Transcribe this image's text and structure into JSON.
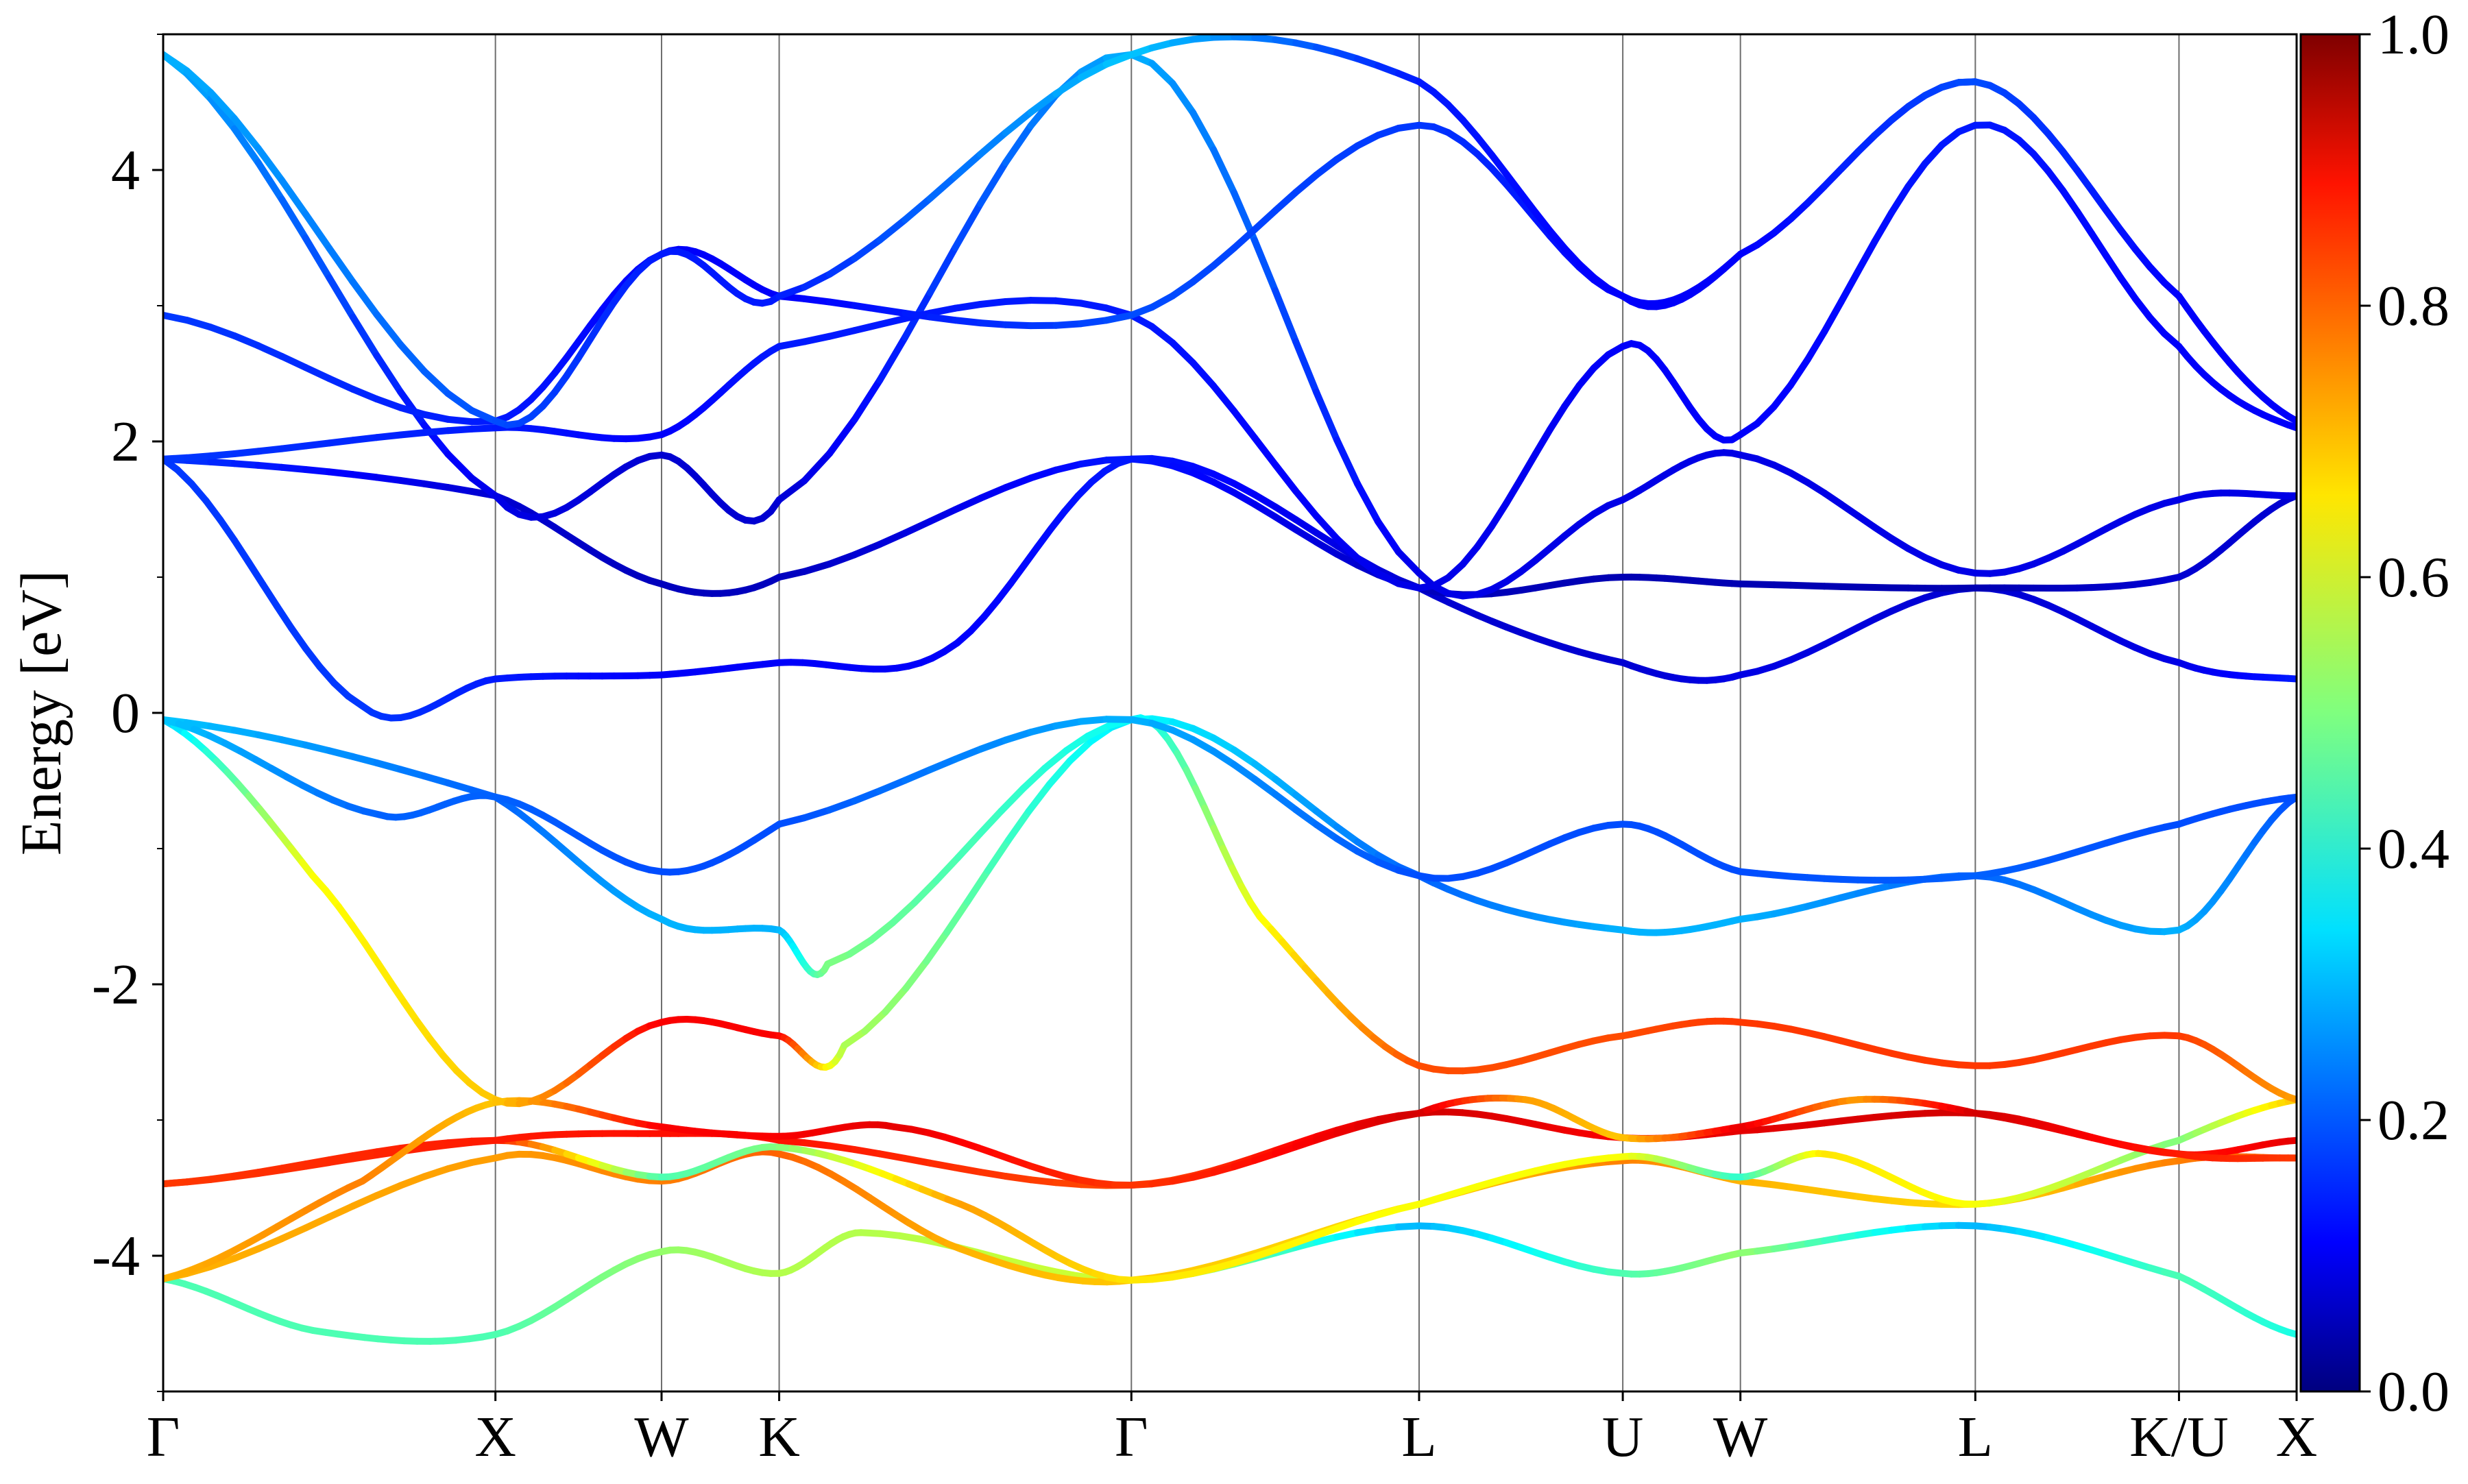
{
  "chart_data": {
    "type": "line",
    "title": "",
    "xlabel": "",
    "ylabel": "Energy [eV]",
    "ylim": [
      -5,
      5
    ],
    "y_ticks": [
      {
        "value": -4,
        "label": "-4"
      },
      {
        "value": -2,
        "label": "-2"
      },
      {
        "value": 0,
        "label": "0"
      },
      {
        "value": 2,
        "label": "2"
      },
      {
        "value": 4,
        "label": "4"
      }
    ],
    "k_points": [
      {
        "label": "Γ",
        "x": 0.0
      },
      {
        "label": "X",
        "x": 1.0
      },
      {
        "label": "W",
        "x": 1.5
      },
      {
        "label": "K",
        "x": 1.854
      },
      {
        "label": "Γ",
        "x": 2.914
      },
      {
        "label": "L",
        "x": 3.78
      },
      {
        "label": "U",
        "x": 4.393
      },
      {
        "label": "W",
        "x": 4.747
      },
      {
        "label": "L",
        "x": 5.454
      },
      {
        "label": "K/U",
        "x": 6.067
      },
      {
        "label": "X",
        "x": 6.421
      }
    ],
    "grid": "vertical lines at high-symmetry points",
    "colorbar": {
      "range": [
        0.0,
        1.0
      ],
      "colormap": "jet",
      "ticks": [
        {
          "value": 0.0,
          "label": "0.0"
        },
        {
          "value": 0.2,
          "label": "0.2"
        },
        {
          "value": 0.4,
          "label": "0.4"
        },
        {
          "value": 0.6,
          "label": "0.6"
        },
        {
          "value": 0.8,
          "label": "0.8"
        },
        {
          "value": 1.0,
          "label": "1.0"
        }
      ]
    },
    "bands": [
      {
        "points": [
          [
            0,
            -4.17,
            0.45
          ],
          [
            0.45,
            -4.55,
            0.45
          ],
          [
            1.0,
            -4.58,
            0.45
          ],
          [
            1.5,
            -3.97,
            0.52
          ],
          [
            1.854,
            -4.13,
            0.55
          ],
          [
            2.1,
            -3.83,
            0.55
          ],
          [
            2.914,
            -4.18,
            0.58
          ],
          [
            3.78,
            -3.78,
            0.3
          ],
          [
            4.393,
            -4.13,
            0.45
          ],
          [
            4.747,
            -3.98,
            0.52
          ],
          [
            5.454,
            -3.78,
            0.3
          ],
          [
            6.067,
            -4.15,
            0.45
          ],
          [
            6.421,
            -4.58,
            0.4
          ]
        ]
      },
      {
        "points": [
          [
            0,
            -4.17,
            0.7
          ],
          [
            1.0,
            -3.28,
            0.72
          ],
          [
            1.5,
            -3.45,
            0.75
          ],
          [
            1.854,
            -3.25,
            0.78
          ],
          [
            2.4,
            -3.95,
            0.7
          ],
          [
            2.914,
            -4.18,
            0.68
          ],
          [
            3.78,
            -3.62,
            0.66
          ],
          [
            4.393,
            -3.3,
            0.75
          ],
          [
            4.747,
            -3.45,
            0.7
          ],
          [
            5.454,
            -3.62,
            0.66
          ],
          [
            6.067,
            -3.3,
            0.75
          ],
          [
            6.421,
            -3.28,
            0.8
          ]
        ]
      },
      {
        "points": [
          [
            0,
            -3.47,
            0.82
          ],
          [
            1.0,
            -3.15,
            0.85
          ],
          [
            1.5,
            -3.42,
            0.45
          ],
          [
            1.854,
            -3.2,
            0.5
          ],
          [
            2.4,
            -3.62,
            0.72
          ],
          [
            2.914,
            -4.18,
            0.65
          ],
          [
            3.78,
            -3.62,
            0.62
          ],
          [
            4.393,
            -3.27,
            0.62
          ],
          [
            4.747,
            -3.42,
            0.42
          ],
          [
            5.0,
            -3.25,
            0.65
          ],
          [
            5.454,
            -3.62,
            0.62
          ],
          [
            6.067,
            -3.15,
            0.5
          ],
          [
            6.421,
            -2.85,
            0.68
          ]
        ]
      },
      {
        "points": [
          [
            0,
            -3.47,
            0.82
          ],
          [
            1.0,
            -3.15,
            0.85
          ],
          [
            1.5,
            -3.1,
            0.86
          ],
          [
            1.854,
            -3.15,
            0.86
          ],
          [
            2.914,
            -3.48,
            0.8
          ],
          [
            3.78,
            -2.95,
            0.92
          ],
          [
            4.393,
            -3.13,
            0.88
          ],
          [
            4.747,
            -3.08,
            0.9
          ],
          [
            5.454,
            -2.95,
            0.92
          ],
          [
            6.067,
            -3.25,
            0.85
          ],
          [
            6.421,
            -3.15,
            0.9
          ]
        ]
      },
      {
        "points": [
          [
            0,
            -4.17,
            0.7
          ],
          [
            0.6,
            -3.45,
            0.75
          ],
          [
            1.0,
            -2.87,
            0.68
          ],
          [
            1.5,
            -3.05,
            0.88
          ],
          [
            1.854,
            -3.12,
            0.88
          ],
          [
            2.2,
            -3.05,
            0.9
          ],
          [
            2.914,
            -3.48,
            0.82
          ],
          [
            3.78,
            -2.95,
            0.92
          ],
          [
            4.1,
            -2.85,
            0.72
          ],
          [
            4.393,
            -3.13,
            0.68
          ],
          [
            4.747,
            -3.05,
            0.9
          ],
          [
            5.1,
            -2.85,
            0.72
          ],
          [
            5.454,
            -2.95,
            0.92
          ],
          [
            6.067,
            -3.25,
            0.85
          ],
          [
            6.421,
            -3.28,
            0.82
          ]
        ]
      },
      {
        "points": [
          [
            0,
            -0.05,
            0.32
          ],
          [
            0.45,
            -1.2,
            0.62
          ],
          [
            1.0,
            -2.85,
            0.68
          ],
          [
            1.5,
            -2.28,
            0.88
          ],
          [
            1.854,
            -2.38,
            0.88
          ],
          [
            2.05,
            -2.45,
            0.55
          ],
          [
            2.914,
            -0.05,
            0.35
          ],
          [
            3.3,
            -1.5,
            0.62
          ],
          [
            3.78,
            -2.6,
            0.8
          ],
          [
            4.393,
            -2.38,
            0.8
          ],
          [
            4.747,
            -2.28,
            0.82
          ],
          [
            5.454,
            -2.6,
            0.82
          ],
          [
            6.067,
            -2.38,
            0.82
          ],
          [
            6.421,
            -2.85,
            0.72
          ]
        ]
      },
      {
        "points": [
          [
            0,
            -0.05,
            0.32
          ],
          [
            1.0,
            -0.62,
            0.22
          ],
          [
            1.5,
            -1.52,
            0.3
          ],
          [
            1.854,
            -1.6,
            0.3
          ],
          [
            2.0,
            -1.85,
            0.5
          ],
          [
            2.914,
            -0.05,
            0.38
          ],
          [
            3.78,
            -1.2,
            0.22
          ],
          [
            4.393,
            -1.6,
            0.3
          ],
          [
            4.747,
            -1.52,
            0.3
          ],
          [
            5.454,
            -1.2,
            0.22
          ],
          [
            6.067,
            -1.6,
            0.3
          ],
          [
            6.421,
            -0.62,
            0.2
          ]
        ]
      },
      {
        "points": [
          [
            0,
            -0.05,
            0.32
          ],
          [
            0.65,
            -0.75,
            0.22
          ],
          [
            1.0,
            -0.62,
            0.22
          ],
          [
            1.5,
            -1.17,
            0.2
          ],
          [
            1.854,
            -0.82,
            0.2
          ],
          [
            2.914,
            -0.05,
            0.3
          ],
          [
            3.78,
            -1.2,
            0.2
          ],
          [
            4.393,
            -0.82,
            0.2
          ],
          [
            4.747,
            -1.17,
            0.2
          ],
          [
            5.454,
            -1.2,
            0.22
          ],
          [
            6.067,
            -0.82,
            0.2
          ],
          [
            6.421,
            -0.62,
            0.2
          ]
        ]
      },
      {
        "points": [
          [
            0,
            1.87,
            0.18
          ],
          [
            0.6,
            0.05,
            0.18
          ],
          [
            1.0,
            0.25,
            0.15
          ],
          [
            1.5,
            0.28,
            0.12
          ],
          [
            1.854,
            0.37,
            0.12
          ],
          [
            2.35,
            0.45,
            0.12
          ],
          [
            2.914,
            1.87,
            0.15
          ],
          [
            3.78,
            0.92,
            0.08
          ],
          [
            4.393,
            0.37,
            0.08
          ],
          [
            4.747,
            0.28,
            0.1
          ],
          [
            5.454,
            0.92,
            0.08
          ],
          [
            6.067,
            0.37,
            0.1
          ],
          [
            6.421,
            0.25,
            0.15
          ]
        ]
      },
      {
        "points": [
          [
            0,
            1.87,
            0.18
          ],
          [
            1.0,
            1.6,
            0.08
          ],
          [
            1.5,
            0.95,
            0.06
          ],
          [
            1.854,
            1.0,
            0.06
          ],
          [
            2.914,
            1.87,
            0.15
          ],
          [
            3.78,
            0.92,
            0.06
          ],
          [
            4.393,
            1.0,
            0.05
          ],
          [
            4.747,
            0.95,
            0.05
          ],
          [
            5.454,
            0.92,
            0.05
          ],
          [
            6.067,
            1.0,
            0.08
          ],
          [
            6.421,
            1.6,
            0.08
          ]
        ]
      },
      {
        "points": [
          [
            0,
            4.85,
            0.3
          ],
          [
            1.0,
            1.6,
            0.1
          ],
          [
            1.5,
            1.9,
            0.08
          ],
          [
            1.854,
            1.57,
            0.08
          ],
          [
            2.914,
            4.85,
            0.3
          ],
          [
            3.78,
            1.03,
            0.1
          ],
          [
            4.393,
            1.57,
            0.1
          ],
          [
            4.747,
            1.9,
            0.1
          ],
          [
            5.454,
            1.03,
            0.1
          ],
          [
            6.067,
            1.57,
            0.1
          ],
          [
            6.421,
            1.6,
            0.1
          ]
        ]
      },
      {
        "points": [
          [
            0,
            1.87,
            0.18
          ],
          [
            1.0,
            2.1,
            0.15
          ],
          [
            1.5,
            2.05,
            0.12
          ],
          [
            1.854,
            2.7,
            0.15
          ],
          [
            2.914,
            2.93,
            0.15
          ],
          [
            3.78,
            0.92,
            0.1
          ],
          [
            4.393,
            2.7,
            0.12
          ],
          [
            4.747,
            2.05,
            0.12
          ],
          [
            5.454,
            4.33,
            0.15
          ],
          [
            6.067,
            2.7,
            0.12
          ],
          [
            6.421,
            2.1,
            0.12
          ]
        ]
      },
      {
        "points": [
          [
            0,
            2.93,
            0.18
          ],
          [
            1.0,
            2.15,
            0.15
          ],
          [
            1.5,
            3.38,
            0.12
          ],
          [
            1.854,
            3.07,
            0.12
          ],
          [
            2.914,
            2.93,
            0.2
          ],
          [
            3.78,
            4.33,
            0.18
          ],
          [
            4.393,
            3.07,
            0.12
          ],
          [
            4.747,
            3.38,
            0.12
          ],
          [
            5.454,
            4.65,
            0.15
          ],
          [
            6.067,
            3.07,
            0.12
          ],
          [
            6.421,
            2.15,
            0.12
          ]
        ]
      },
      {
        "points": [
          [
            0,
            4.85,
            0.3
          ],
          [
            1.0,
            2.15,
            0.2
          ],
          [
            1.5,
            3.38,
            0.15
          ],
          [
            1.854,
            3.07,
            0.15
          ],
          [
            2.914,
            4.85,
            0.32
          ],
          [
            3.78,
            4.65,
            0.15
          ],
          [
            4.393,
            3.07,
            0.12
          ],
          [
            4.747,
            3.38,
            0.12
          ],
          [
            5.454,
            4.65,
            0.2
          ],
          [
            6.067,
            3.07,
            0.12
          ],
          [
            6.421,
            2.15,
            0.12
          ]
        ]
      }
    ]
  }
}
